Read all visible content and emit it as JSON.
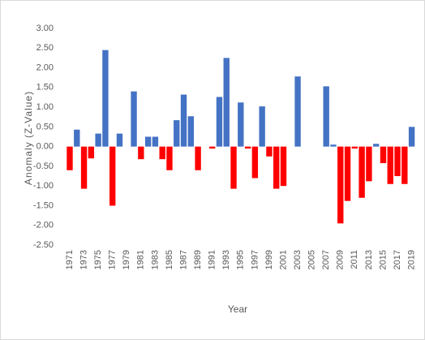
{
  "chart_data": {
    "type": "bar",
    "x_label": "Year",
    "y_label": "Anomaly (Z-Value)",
    "categories": [
      "1971",
      null,
      "1973",
      null,
      "1975",
      null,
      "1977",
      null,
      "1979",
      null,
      "1981",
      null,
      "1983",
      null,
      "1985",
      null,
      "1987",
      null,
      "1989",
      null,
      "1991",
      null,
      "1993",
      null,
      "1995",
      null,
      "1997",
      null,
      "1999",
      null,
      "2001",
      null,
      "2003",
      null,
      "2005",
      null,
      "2007",
      null,
      "2009",
      null,
      "2011",
      null,
      "2013",
      null,
      "2015",
      null,
      "2017",
      null,
      "2019"
    ],
    "values": [
      -0.6,
      0.43,
      -1.07,
      -0.3,
      0.33,
      2.45,
      -1.5,
      0.33,
      0,
      1.4,
      -0.32,
      0.25,
      0.25,
      -0.32,
      -0.6,
      0.67,
      1.32,
      0.77,
      -0.6,
      0,
      -0.05,
      1.26,
      2.25,
      -1.07,
      1.12,
      -0.05,
      -0.8,
      1.02,
      -0.25,
      -1.07,
      -1.0,
      0,
      1.78,
      0,
      0,
      0,
      1.53,
      0.05,
      -1.95,
      -1.38,
      -0.05,
      -1.3,
      -0.88,
      0.07,
      -0.42,
      -0.95,
      -0.75,
      -0.95,
      0.5
    ],
    "positive_color": "#4472c4",
    "negative_color": "#ff0000",
    "ylim": [
      -2.5,
      3.0
    ],
    "yticks": [
      {
        "value": 3.0,
        "label": "3.00"
      },
      {
        "value": 2.5,
        "label": "2.50"
      },
      {
        "value": 2.0,
        "label": "2.00"
      },
      {
        "value": 1.5,
        "label": "1.50"
      },
      {
        "value": 1.0,
        "label": "1.00"
      },
      {
        "value": 0.5,
        "label": "0.50"
      },
      {
        "value": 0.0,
        "label": "0.00"
      },
      {
        "value": -0.5,
        "label": "-0.50"
      },
      {
        "value": -1.0,
        "label": "-1.00"
      },
      {
        "value": -1.5,
        "label": "-1.50"
      },
      {
        "value": -2.0,
        "label": "-2.00"
      },
      {
        "value": -2.5,
        "label": "-2.50"
      }
    ],
    "grid": false
  }
}
